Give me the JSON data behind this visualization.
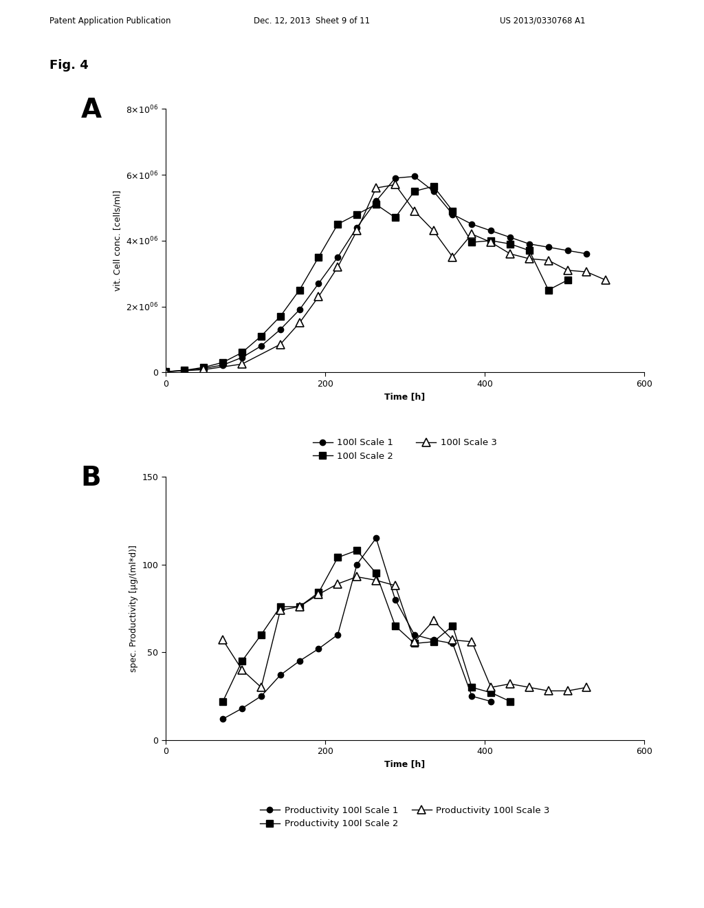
{
  "fig4_label": "Fig. 4",
  "panel_A_label": "A",
  "panel_B_label": "B",
  "header_left": "Patent Application Publication",
  "header_mid": "Dec. 12, 2013  Sheet 9 of 11",
  "header_right": "US 2013/0330768 A1",
  "scale1_x": [
    0,
    24,
    48,
    72,
    96,
    120,
    144,
    168,
    192,
    216,
    240,
    264,
    288,
    312,
    336,
    360,
    384,
    408,
    432,
    456,
    480,
    504,
    528
  ],
  "scale1_y": [
    20000.0,
    50000.0,
    120000.0,
    220000.0,
    450000.0,
    800000.0,
    1300000.0,
    1900000.0,
    2700000.0,
    3500000.0,
    4400000.0,
    5200000.0,
    5900000.0,
    5950000.0,
    5500000.0,
    4800000.0,
    4500000.0,
    4300000.0,
    4100000.0,
    3900000.0,
    3800000.0,
    3700000.0,
    3600000.0
  ],
  "scale2_x": [
    0,
    24,
    48,
    72,
    96,
    120,
    144,
    168,
    192,
    216,
    240,
    264,
    288,
    312,
    336,
    360,
    384,
    408,
    432,
    456,
    480,
    504
  ],
  "scale2_y": [
    20000.0,
    60000.0,
    150000.0,
    300000.0,
    600000.0,
    1100000.0,
    1700000.0,
    2500000.0,
    3500000.0,
    4500000.0,
    4800000.0,
    5100000.0,
    4700000.0,
    5500000.0,
    5650000.0,
    4900000.0,
    3950000.0,
    4000000.0,
    3900000.0,
    3700000.0,
    2500000.0,
    2800000.0
  ],
  "scale3_x": [
    0,
    48,
    96,
    144,
    168,
    192,
    216,
    240,
    264,
    288,
    312,
    336,
    360,
    384,
    408,
    432,
    456,
    480,
    504,
    528,
    552
  ],
  "scale3_y": [
    20000.0,
    80000.0,
    250000.0,
    850000.0,
    1500000.0,
    2300000.0,
    3200000.0,
    4300000.0,
    5600000.0,
    5700000.0,
    4900000.0,
    4300000.0,
    3500000.0,
    4200000.0,
    3950000.0,
    3600000.0,
    3450000.0,
    3400000.0,
    3100000.0,
    3050000.0,
    2800000.0
  ],
  "prod1_x": [
    72,
    96,
    120,
    144,
    168,
    192,
    216,
    240,
    264,
    288,
    312,
    336,
    360,
    384,
    408
  ],
  "prod1_y": [
    12,
    18,
    25,
    37,
    45,
    52,
    60,
    100,
    115,
    80,
    60,
    57,
    55,
    25,
    22
  ],
  "prod2_x": [
    72,
    96,
    120,
    144,
    168,
    192,
    216,
    240,
    264,
    288,
    312,
    336,
    360,
    384,
    408,
    432
  ],
  "prod2_y": [
    22,
    45,
    60,
    76,
    76,
    84,
    104,
    108,
    95,
    65,
    55,
    56,
    65,
    30,
    27,
    22
  ],
  "prod3_x": [
    72,
    96,
    120,
    144,
    168,
    192,
    216,
    240,
    264,
    288,
    312,
    336,
    360,
    384,
    408,
    432,
    456,
    480,
    504,
    528
  ],
  "prod3_y": [
    57,
    40,
    30,
    74,
    76,
    83,
    89,
    93,
    91,
    88,
    56,
    68,
    57,
    56,
    30,
    32,
    30,
    28,
    28,
    30
  ],
  "color_black": "#000000",
  "background_color": "#ffffff",
  "ylabel_A": "vit. Cell conc. [cells/ml]",
  "xlabel_A": "Time [h]",
  "ylabel_B": "spec. Productivity [μg/(ml*d)]",
  "xlabel_B": "Time [h]",
  "legend_A": [
    "100l Scale 1",
    "100l Scale 2",
    "100l Scale 3"
  ],
  "legend_B": [
    "Productivity 100l Scale 1",
    "Productivity 100l Scale 2",
    "Productivity 100l Scale 3"
  ],
  "xlim": [
    0,
    600
  ],
  "ylim_A": [
    0,
    8000000.0
  ],
  "ylim_B": [
    0,
    150
  ],
  "yticks_A": [
    0,
    2000000,
    4000000,
    6000000,
    8000000
  ],
  "yticks_B": [
    0,
    50,
    100,
    150
  ],
  "xticks": [
    0,
    200,
    400,
    600
  ]
}
